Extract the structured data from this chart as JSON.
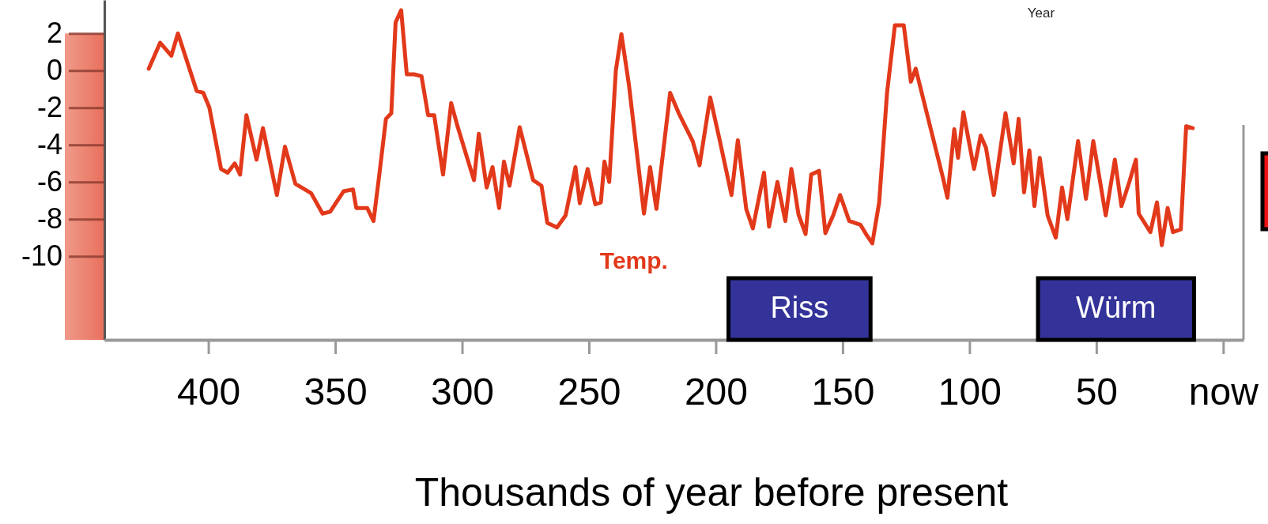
{
  "chart_data": {
    "type": "line",
    "xlabel": "Thousands of year before present",
    "annotations": [
      "Year"
    ],
    "xlim": [
      441,
      -8
    ],
    "ylim": [
      -14.5,
      3.8
    ],
    "xticks": [
      400,
      350,
      300,
      250,
      200,
      150,
      100,
      50,
      {
        "value": 0,
        "label": "now"
      }
    ],
    "yticks": [
      2,
      0,
      -2,
      -4,
      -6,
      -8,
      -10
    ],
    "legend": false,
    "line_style": "solid",
    "marker": "none",
    "bands": [
      {
        "axis": "x",
        "from": 195,
        "to": 139,
        "label": "Riss",
        "color": "#333399"
      },
      {
        "axis": "x",
        "from": 73,
        "to": 11.5,
        "label": "Würm",
        "color": "#333399"
      }
    ],
    "series": [
      {
        "name": "Temp.",
        "color": "#e2391b",
        "x": [
          423.5,
          419,
          414.6,
          412,
          404.6,
          402,
          399.6,
          395,
          392.4,
          389.6,
          387.5,
          385,
          381,
          378.5,
          373,
          369.8,
          365.7,
          359.5,
          355,
          352,
          346.7,
          343,
          341.7,
          337.4,
          334.9,
          332.8,
          330,
          327.9,
          326.2,
          324,
          321.8,
          319,
          316,
          313.4,
          311,
          307.5,
          304.3,
          302,
          298,
          295.3,
          293.4,
          290.3,
          288,
          285.4,
          283.5,
          281.3,
          277.3,
          272,
          268.7,
          266.4,
          262.6,
          259.2,
          255.3,
          253.6,
          250.5,
          247.5,
          245.3,
          243.9,
          242,
          239.4,
          237.2,
          234.2,
          228.3,
          225.9,
          223.4,
          218,
          214.6,
          209.1,
          206.4,
          202.2,
          198.6,
          193.8,
          191.3,
          188,
          185.4,
          181,
          179,
          175.7,
          172.6,
          170.2,
          167.4,
          164.6,
          162.4,
          159.3,
          156.8,
          153.6,
          151,
          147.4,
          143,
          140.8,
          138.3,
          135.6,
          132.5,
          129.4,
          125.9,
          123.1,
          121.2,
          110.3,
          108.7,
          106,
          104.5,
          102.4,
          98.2,
          95.6,
          93.5,
          90.4,
          85.8,
          82.6,
          80.6,
          78.5,
          76.4,
          74.4,
          72.3,
          69.2,
          66,
          63.5,
          61.4,
          57.2,
          54.1,
          51.2,
          46.3,
          42.7,
          40.1,
          37,
          34.4,
          33.3,
          28.7,
          26.1,
          24.2,
          21.9,
          19.8,
          16.7,
          14.6,
          12
        ],
        "values": [
          0.1,
          1.5,
          0.8,
          2,
          -1.1,
          -1.2,
          -2,
          -5.3,
          -5.5,
          -5,
          -5.6,
          -2.4,
          -4.8,
          -3.1,
          -6.7,
          -4.1,
          -6.1,
          -6.6,
          -7.7,
          -7.6,
          -6.5,
          -6.4,
          -7.4,
          -7.4,
          -8.1,
          -5.8,
          -2.6,
          -2.3,
          2.6,
          3.25,
          -0.2,
          -0.2,
          -0.3,
          -2.4,
          -2.4,
          -5.6,
          -1.75,
          -2.9,
          -4.7,
          -5.9,
          -3.4,
          -6.3,
          -5.2,
          -7.4,
          -4.9,
          -6.2,
          -3.05,
          -5.9,
          -6.2,
          -8.2,
          -8.45,
          -7.8,
          -5.2,
          -7.15,
          -5.3,
          -7.2,
          -7.1,
          -4.9,
          -6,
          0,
          1.96,
          -0.8,
          -7.7,
          -5.2,
          -7.45,
          -1.2,
          -2.3,
          -3.8,
          -5.1,
          -1.45,
          -3.66,
          -6.7,
          -3.75,
          -7.45,
          -8.5,
          -5.5,
          -8.4,
          -6,
          -8.1,
          -5.3,
          -7.75,
          -8.8,
          -5.6,
          -5.4,
          -8.75,
          -7.75,
          -6.7,
          -8.1,
          -8.3,
          -8.8,
          -9.3,
          -7.1,
          -1.2,
          2.44,
          2.44,
          -0.6,
          0.1,
          -5.86,
          -6.85,
          -3.16,
          -4.7,
          -2.24,
          -5.3,
          -3.5,
          -4.16,
          -6.7,
          -2.3,
          -5,
          -2.6,
          -6.56,
          -4.3,
          -7.3,
          -4.7,
          -7.8,
          -9,
          -6.3,
          -8,
          -3.8,
          -6.9,
          -3.8,
          -7.8,
          -4.8,
          -7.3,
          -6,
          -4.8,
          -7.7,
          -8.7,
          -7.1,
          -9.4,
          -7.4,
          -8.7,
          -8.55,
          -3,
          -3.1
        ]
      }
    ]
  }
}
